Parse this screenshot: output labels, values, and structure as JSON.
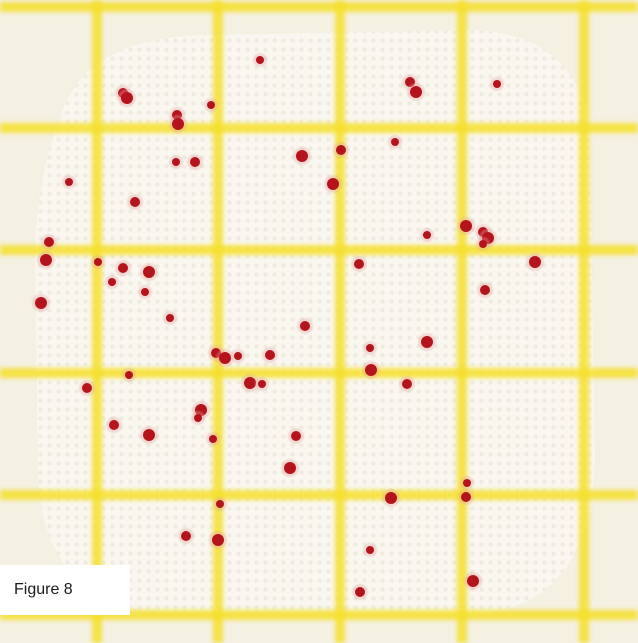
{
  "figure": {
    "label": "Figure 8"
  }
}
